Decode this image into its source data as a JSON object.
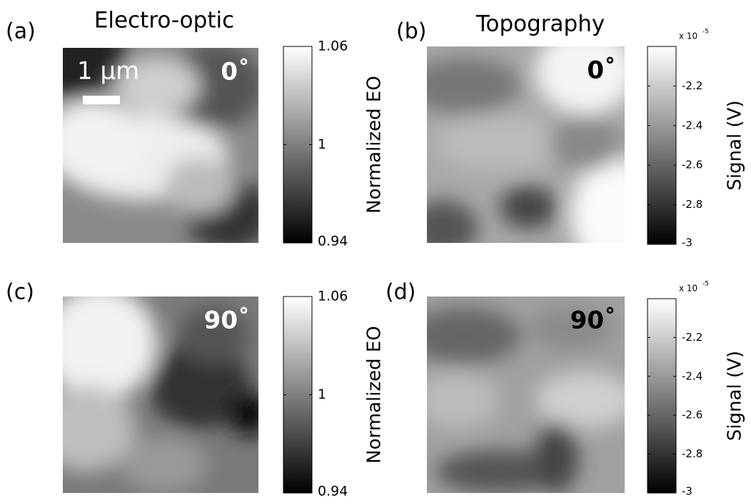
{
  "chart_data": [
    {
      "type": "image",
      "panel_label": "(a)",
      "title": "Electro-optic",
      "annotation": "0˚",
      "annotation_color": "#ffffff",
      "scale_bar_label": "1 μm",
      "colorbar": {
        "label": "Normalized EO",
        "ylim": [
          0.94,
          1.06
        ],
        "yticks": [
          0.94,
          1,
          1.06
        ]
      }
    },
    {
      "type": "image",
      "panel_label": "(b)",
      "title": "Topography",
      "annotation": "0˚",
      "annotation_color": "#000000",
      "colorbar": {
        "label": "Signal (V)",
        "multiplier_base": "x 10",
        "multiplier_exponent": "-5",
        "ylim": [
          -3,
          -2
        ],
        "yticks": [
          -3,
          -2.8,
          -2.6,
          -2.4,
          -2.2
        ]
      }
    },
    {
      "type": "image",
      "panel_label": "(c)",
      "annotation": "90˚",
      "annotation_color": "#ffffff",
      "colorbar": {
        "label": "Normalized EO",
        "ylim": [
          0.94,
          1.06
        ],
        "yticks": [
          0.94,
          1,
          1.06
        ]
      }
    },
    {
      "type": "image",
      "panel_label": "(d)",
      "annotation": "90˚",
      "annotation_color": "#000000",
      "colorbar": {
        "label": "Signal (V)",
        "multiplier_base": "x 10",
        "multiplier_exponent": "-5",
        "ylim": [
          -3,
          -2
        ],
        "yticks": [
          -3,
          -2.8,
          -2.6,
          -2.4,
          -2.2
        ]
      }
    }
  ]
}
